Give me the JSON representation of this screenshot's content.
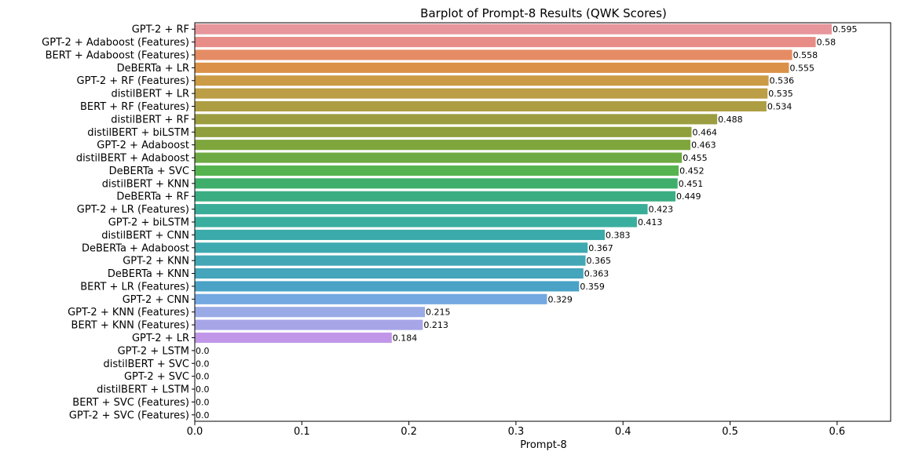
{
  "chart_data": {
    "type": "bar",
    "orientation": "horizontal",
    "title": "Barplot of Prompt-8 Results (QWK Scores)",
    "xlabel": "Prompt-8",
    "ylabel": "",
    "xlim": [
      0.0,
      0.65
    ],
    "xticks": [
      0.0,
      0.1,
      0.2,
      0.3,
      0.4,
      0.5,
      0.6
    ],
    "xtick_labels": [
      "0.0",
      "0.1",
      "0.2",
      "0.3",
      "0.4",
      "0.5",
      "0.6"
    ],
    "grid": false,
    "categories": [
      "GPT-2 + RF",
      "GPT-2 + Adaboost (Features)",
      "BERT + Adaboost (Features)",
      "DeBERTa + LR",
      "GPT-2 + RF (Features)",
      "distilBERT + LR",
      "BERT + RF (Features)",
      "distilBERT + RF",
      "distilBERT + biLSTM",
      "GPT-2 + Adaboost",
      "distilBERT + Adaboost",
      "DeBERTa + SVC",
      "distilBERT + KNN",
      "DeBERTa + RF",
      "GPT-2 + LR (Features)",
      "GPT-2 + biLSTM",
      "distilBERT + CNN",
      "DeBERTa + Adaboost",
      "GPT-2 + KNN",
      "DeBERTa + KNN",
      "BERT + LR (Features)",
      "GPT-2 + CNN",
      "GPT-2 + KNN (Features)",
      "BERT + KNN (Features)",
      "GPT-2 + LR",
      "GPT-2 + LSTM",
      "distilBERT + SVC",
      "GPT-2 + SVC",
      "distilBERT + LSTM",
      "BERT + SVC (Features)",
      "GPT-2 + SVC (Features)"
    ],
    "values": [
      0.595,
      0.58,
      0.558,
      0.555,
      0.536,
      0.535,
      0.534,
      0.488,
      0.464,
      0.463,
      0.455,
      0.452,
      0.451,
      0.449,
      0.423,
      0.413,
      0.383,
      0.367,
      0.365,
      0.363,
      0.359,
      0.329,
      0.215,
      0.213,
      0.184,
      0.0,
      0.0,
      0.0,
      0.0,
      0.0,
      0.0
    ],
    "value_labels": [
      "0.595",
      "0.58",
      "0.558",
      "0.555",
      "0.536",
      "0.535",
      "0.534",
      "0.488",
      "0.464",
      "0.463",
      "0.455",
      "0.452",
      "0.451",
      "0.449",
      "0.423",
      "0.413",
      "0.383",
      "0.367",
      "0.365",
      "0.363",
      "0.359",
      "0.329",
      "0.215",
      "0.213",
      "0.184",
      "0.0",
      "0.0",
      "0.0",
      "0.0",
      "0.0",
      "0.0"
    ],
    "colors": [
      "#e7969c",
      "#e78c86",
      "#e68c64",
      "#dc9148",
      "#cb9b45",
      "#bb9e45",
      "#ad9e44",
      "#9b9d40",
      "#8f9f3c",
      "#7fa63c",
      "#6eaa43",
      "#55b44f",
      "#3fae6a",
      "#3aad82",
      "#3aad98",
      "#3aae9f",
      "#3aaaaa",
      "#3fa9b0",
      "#43a7b5",
      "#44a5bb",
      "#4aa2c6",
      "#73a8e0",
      "#9aaae6",
      "#a7a5e8",
      "#c196e8",
      "#c994e4",
      "#d18fde",
      "#da88d6",
      "#e186cd",
      "#e685c3",
      "#e88ab5"
    ]
  }
}
